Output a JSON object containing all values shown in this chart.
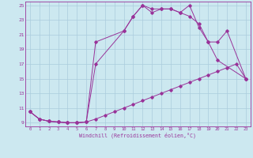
{
  "xlabel": "Windchill (Refroidissement éolien,°C)",
  "background_color": "#cce8f0",
  "grid_color": "#aaccdd",
  "line_color": "#993399",
  "xmin": -0.5,
  "xmax": 23.5,
  "ymin": 8.5,
  "ymax": 25.5,
  "yticks": [
    9,
    11,
    13,
    15,
    17,
    19,
    21,
    23,
    25
  ],
  "xticks": [
    0,
    1,
    2,
    3,
    4,
    5,
    6,
    7,
    8,
    9,
    10,
    11,
    12,
    13,
    14,
    15,
    16,
    17,
    18,
    19,
    20,
    21,
    22,
    23
  ],
  "line1_x": [
    0,
    1,
    2,
    3,
    4,
    5,
    6,
    7,
    8,
    9,
    10,
    11,
    12,
    13,
    14,
    15,
    16,
    17,
    18,
    19,
    20,
    21,
    22,
    23
  ],
  "line1_y": [
    10.5,
    9.5,
    9.2,
    9.1,
    9.0,
    9.0,
    9.1,
    9.5,
    10.0,
    10.5,
    11.0,
    11.5,
    12.0,
    12.5,
    13.0,
    13.5,
    14.0,
    14.5,
    15.0,
    15.5,
    16.0,
    16.5,
    17.0,
    15.0
  ],
  "line2_x": [
    0,
    1,
    2,
    3,
    4,
    5,
    6,
    7,
    10,
    11,
    12,
    13,
    14,
    15,
    16,
    17,
    18,
    19,
    20,
    23
  ],
  "line2_y": [
    10.5,
    9.5,
    9.2,
    9.1,
    9.0,
    9.0,
    9.1,
    20.0,
    21.5,
    23.5,
    25.0,
    24.0,
    24.5,
    24.5,
    24.0,
    25.0,
    22.0,
    20.0,
    17.5,
    15.0
  ],
  "line3_x": [
    0,
    1,
    2,
    3,
    4,
    5,
    6,
    7,
    10,
    11,
    12,
    13,
    14,
    15,
    16,
    17,
    18,
    19,
    20,
    21,
    23
  ],
  "line3_y": [
    10.5,
    9.5,
    9.2,
    9.1,
    9.0,
    9.0,
    9.1,
    17.0,
    21.5,
    23.5,
    25.0,
    24.5,
    24.5,
    24.5,
    24.0,
    23.5,
    22.5,
    20.0,
    20.0,
    21.5,
    15.0
  ]
}
